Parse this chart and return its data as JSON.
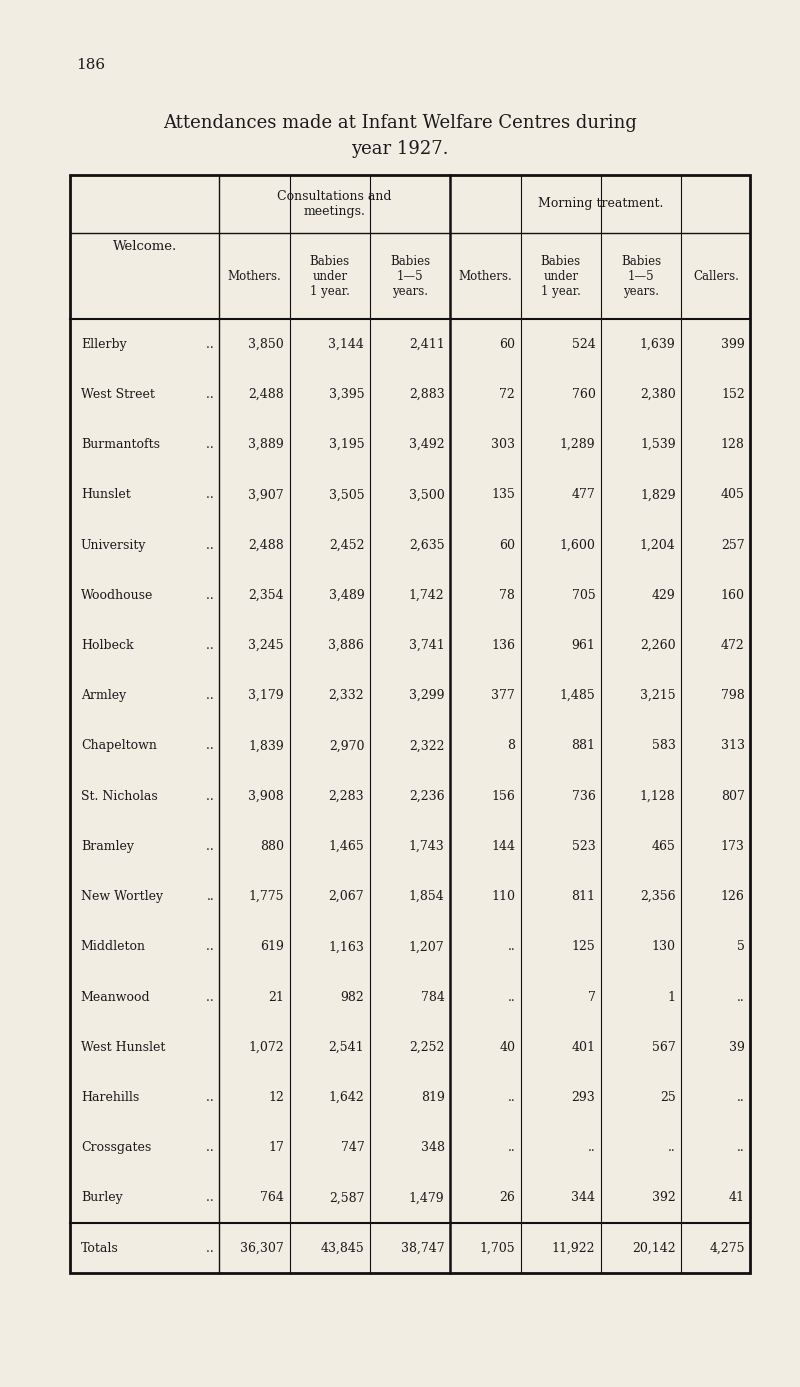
{
  "page_number": "186",
  "title_line1": "Attendances made at Infant Welfare Centres during",
  "title_line2": "year 1927.",
  "bg_color": "#f2ede3",
  "text_color": "#1a1a1a",
  "header_group1": "Consultations and\nmeetings.",
  "header_group2": "Morning treatment.",
  "col0_header": "Welcome.",
  "col_headers": [
    "Mothers.",
    "Babies\nunder\n1 year.",
    "Babies\n1—5\nyears.",
    "Mothers.",
    "Babies\nunder\n1 year.",
    "Babies\n1—5\nyears.",
    "Callers."
  ],
  "rows": [
    [
      "Ellerby",
      " ..",
      "3,850",
      "3,144",
      "2,411",
      "60",
      "524",
      "1,639",
      "399"
    ],
    [
      "West Street",
      " ..",
      "2,488",
      "3,395",
      "2,883",
      "72",
      "760",
      "2,380",
      "152"
    ],
    [
      "Burmantofts",
      " ..",
      "3,889",
      "3,195",
      "3,492",
      "303",
      "1,289",
      "1,539",
      "128"
    ],
    [
      "Hunslet",
      " ..",
      "3,907",
      "3,505",
      "3,500",
      "135",
      "477",
      "1,829",
      "405"
    ],
    [
      "University",
      " ..",
      "2,488",
      "2,452",
      "2,635",
      "60",
      "1,600",
      "1,204",
      "257"
    ],
    [
      "Woodhouse",
      " ..",
      "2,354",
      "3,489",
      "1,742",
      "78",
      "705",
      "429",
      "160"
    ],
    [
      "Holbeck",
      " ..",
      "3,245",
      "3,886",
      "3,741",
      "136",
      "961",
      "2,260",
      "472"
    ],
    [
      "Armley",
      " ..",
      "3,179",
      "2,332",
      "3,299",
      "377",
      "1,485",
      "3,215",
      "798"
    ],
    [
      "Chapeltown",
      " ..",
      "1,839",
      "2,970",
      "2,322",
      "8",
      "881",
      "583",
      "313"
    ],
    [
      "St. Nicholas",
      " ..",
      "3,908",
      "2,283",
      "2,236",
      "156",
      "736",
      "1,128",
      "807"
    ],
    [
      "Bramley",
      " ..",
      "880",
      "1,465",
      "1,743",
      "144",
      "523",
      "465",
      "173"
    ],
    [
      "New Wortley",
      "..",
      "1,775",
      "2,067",
      "1,854",
      "110",
      "811",
      "2,356",
      "126"
    ],
    [
      "Middleton",
      " ..",
      "619",
      "1,163",
      "1,207",
      "..",
      "125",
      "130",
      "5"
    ],
    [
      "Meanwood",
      " ..",
      "21",
      "982",
      "784",
      "..",
      "7",
      "1",
      ".."
    ],
    [
      "West Hunslet",
      "",
      "1,072",
      "2,541",
      "2,252",
      "40",
      "401",
      "567",
      "39"
    ],
    [
      "Harehills",
      " ..",
      "12",
      "1,642",
      "819",
      "..",
      "293",
      "25",
      ".."
    ],
    [
      "Crossgates",
      " ..",
      "17",
      "747",
      "348",
      "..",
      "..",
      "..",
      ".."
    ],
    [
      "Burley",
      " ..",
      "764",
      "2,587",
      "1,479",
      "26",
      "344",
      "392",
      "41"
    ]
  ],
  "totals_row": [
    "Totals",
    " ..",
    "36,307",
    "43,845",
    "38,747",
    "1,705",
    "11,922",
    "20,142",
    "4,275"
  ]
}
